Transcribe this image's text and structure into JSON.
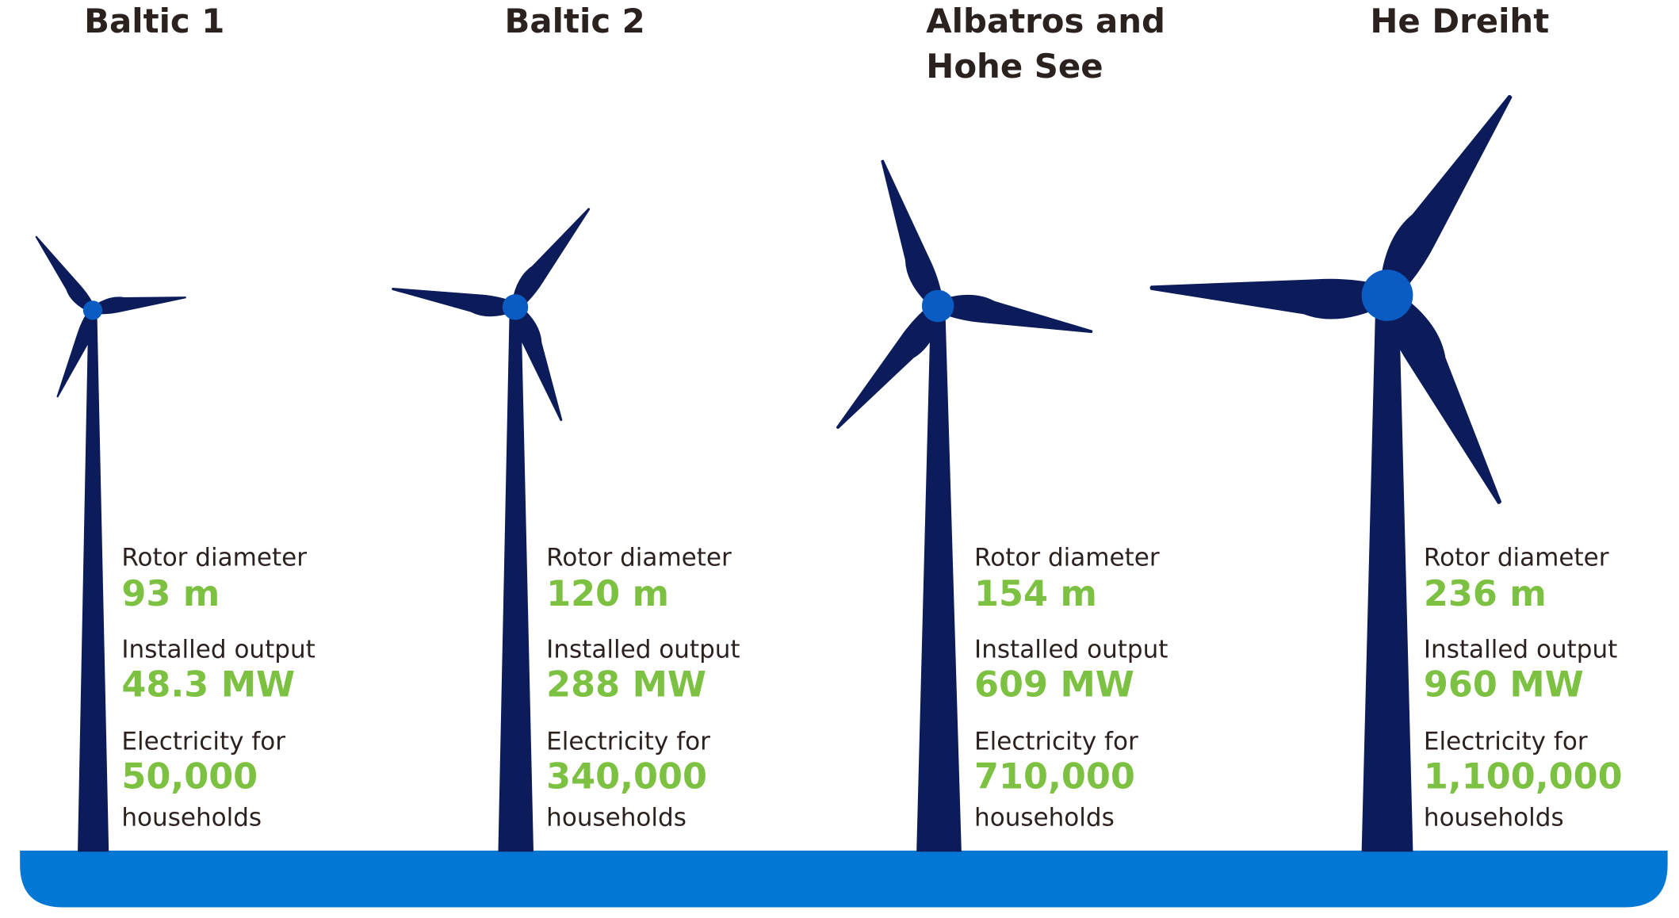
{
  "turbines": [
    {
      "name_lines": [
        "Baltic 1"
      ],
      "rotor_label": "Rotor diameter",
      "rotor": "93 m",
      "output_label": "Installed output",
      "output": "48.3 MW",
      "households_label": "Electricity for",
      "households": "50,000",
      "households_unit": "households"
    },
    {
      "name_lines": [
        "Baltic 2"
      ],
      "rotor_label": "Rotor diameter",
      "rotor": "120 m",
      "output_label": "Installed output",
      "output": "288 MW",
      "households_label": "Electricity for",
      "households": "340,000",
      "households_unit": "households"
    },
    {
      "name_lines": [
        "Albatros and",
        "Hohe See"
      ],
      "rotor_label": "Rotor diameter",
      "rotor": "154 m",
      "output_label": "Installed output",
      "output": "609 MW",
      "households_label": "Electricity for",
      "households": "710,000",
      "households_unit": "households"
    },
    {
      "name_lines": [
        "He Dreiht"
      ],
      "rotor_label": "Rotor diameter",
      "rotor": "236 m",
      "output_label": "Installed output",
      "output": "960 MW",
      "households_label": "Electricity for",
      "households": "1,100,000",
      "households_unit": "households"
    }
  ]
}
